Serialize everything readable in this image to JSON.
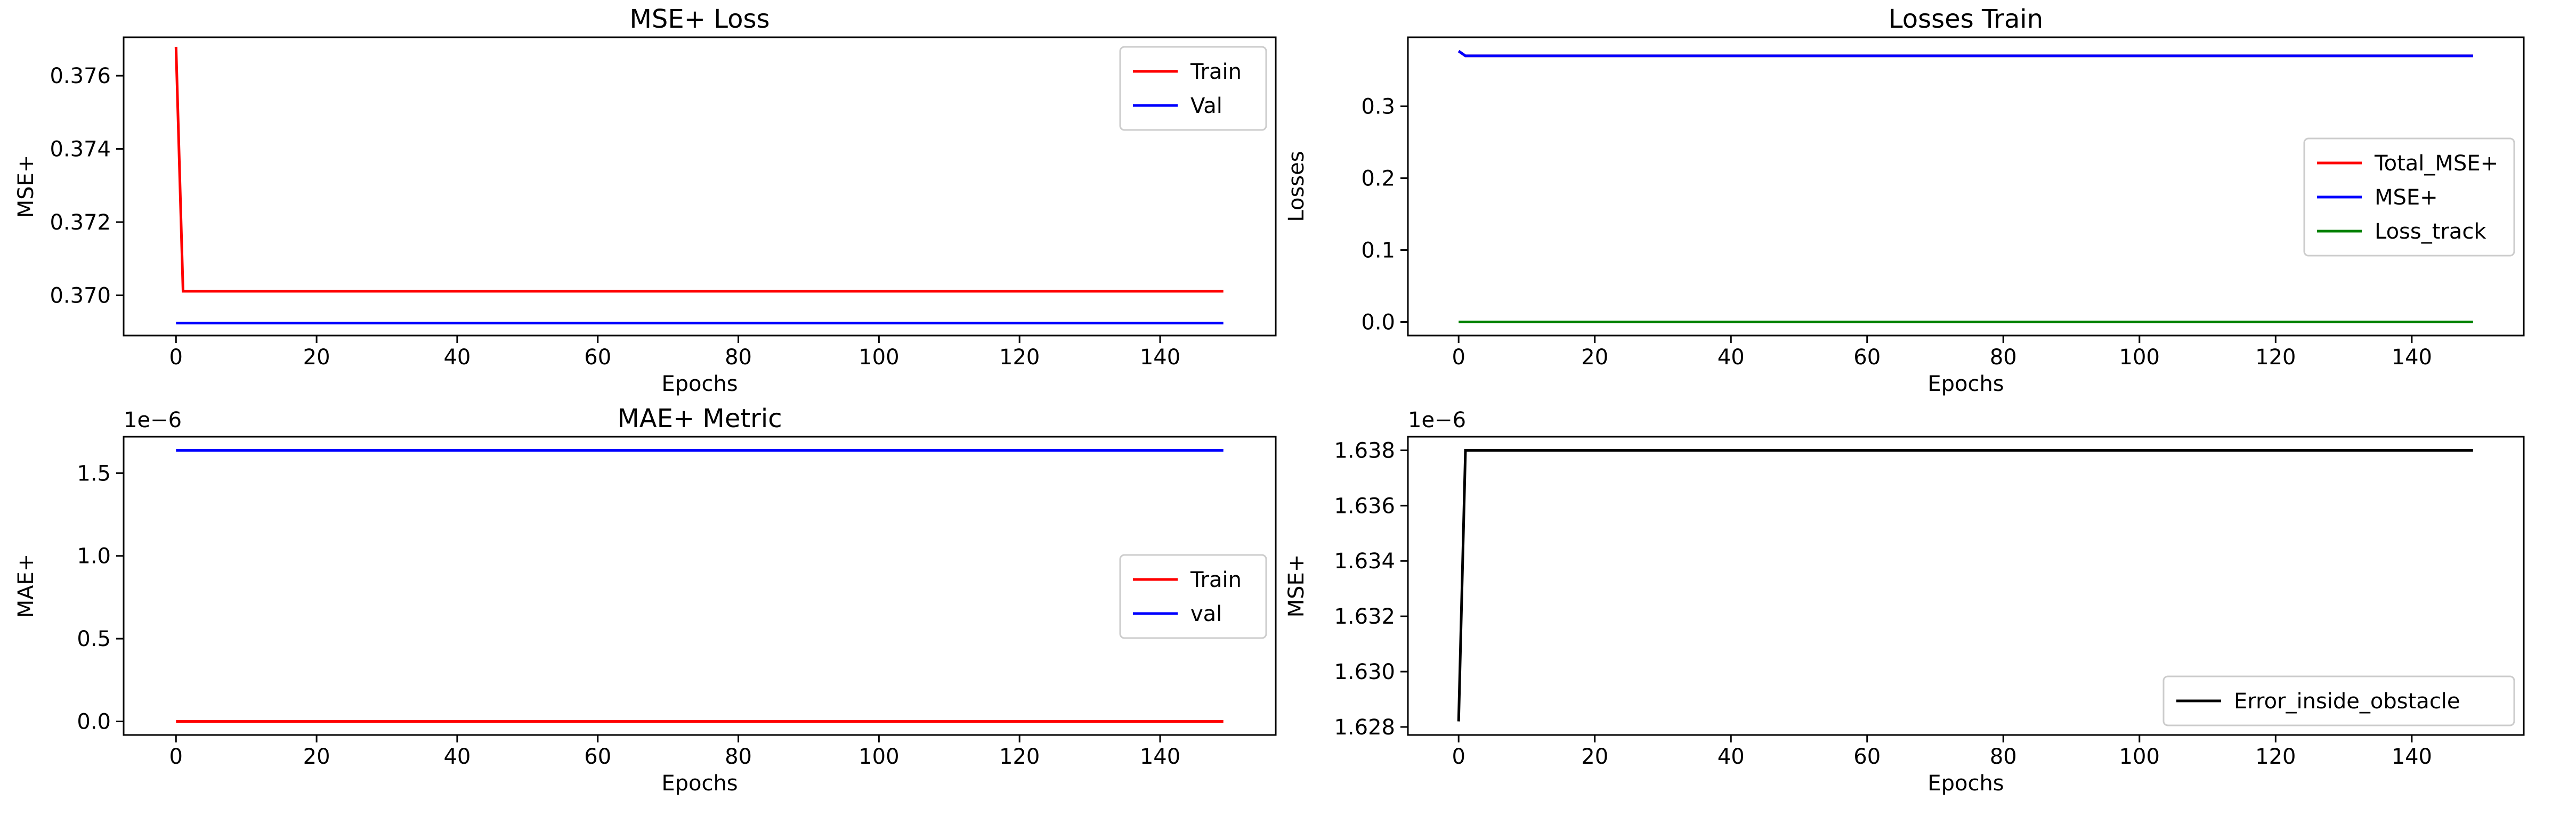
{
  "chart_data": [
    {
      "type": "line",
      "title": "MSE+ Loss",
      "xlabel": "Epochs",
      "ylabel": "MSE+",
      "xlim": [
        -7.45,
        156.45
      ],
      "ylim": [
        0.3689,
        0.37705
      ],
      "xticks": [
        0,
        20,
        40,
        60,
        80,
        100,
        120,
        140
      ],
      "yticks": [
        0.37,
        0.372,
        0.374,
        0.376
      ],
      "ytick_labels": [
        "0.370",
        "0.372",
        "0.374",
        "0.376"
      ],
      "offset_label": "",
      "legend_position": "upper right",
      "series": [
        {
          "name": "Train",
          "color": "#ff0000",
          "points": [
            [
              0,
              0.37679
            ],
            [
              1,
              0.37011
            ],
            [
              149,
              0.37011
            ]
          ]
        },
        {
          "name": "Val",
          "color": "#0000ff",
          "points": [
            [
              0,
              0.36924
            ],
            [
              149,
              0.36924
            ]
          ]
        }
      ]
    },
    {
      "type": "line",
      "title": "Losses Train",
      "xlabel": "Epochs",
      "ylabel": "Losses",
      "xlim": [
        -7.45,
        156.45
      ],
      "ylim": [
        -0.0189,
        0.396
      ],
      "xticks": [
        0,
        20,
        40,
        60,
        80,
        100,
        120,
        140
      ],
      "yticks": [
        0.0,
        0.1,
        0.2,
        0.3
      ],
      "ytick_labels": [
        "0.0",
        "0.1",
        "0.2",
        "0.3"
      ],
      "offset_label": "",
      "legend_position": "center right",
      "series": [
        {
          "name": "Total_MSE+",
          "color": "#ff0000",
          "points": [
            [
              0,
              0.37679
            ],
            [
              1,
              0.37011
            ],
            [
              149,
              0.37011
            ]
          ]
        },
        {
          "name": "MSE+",
          "color": "#0000ff",
          "points": [
            [
              0,
              0.37679
            ],
            [
              1,
              0.37011
            ],
            [
              149,
              0.37011
            ]
          ]
        },
        {
          "name": "Loss_track",
          "color": "#008000",
          "points": [
            [
              0,
              0.0
            ],
            [
              149,
              0.0
            ]
          ]
        }
      ]
    },
    {
      "type": "line",
      "title": "MAE+ Metric",
      "xlabel": "Epochs",
      "ylabel": "MAE+",
      "xlim": [
        -7.45,
        156.45
      ],
      "ylim": [
        -0.0819,
        1.7199
      ],
      "xticks": [
        0,
        20,
        40,
        60,
        80,
        100,
        120,
        140
      ],
      "yticks": [
        0.0,
        0.5,
        1.0,
        1.5
      ],
      "ytick_labels": [
        "0.0",
        "0.5",
        "1.0",
        "1.5"
      ],
      "offset_label": "1e−6",
      "legend_position": "center right",
      "series": [
        {
          "name": "Train",
          "color": "#ff0000",
          "points": [
            [
              0,
              0.0
            ],
            [
              149,
              0.0
            ]
          ]
        },
        {
          "name": "val",
          "color": "#0000ff",
          "points": [
            [
              0,
              1.638
            ],
            [
              149,
              1.638
            ]
          ]
        }
      ]
    },
    {
      "type": "line",
      "title": "",
      "xlabel": "Epochs",
      "ylabel": "MSE+",
      "xlim": [
        -7.45,
        156.45
      ],
      "ylim": [
        1.62771,
        1.63849
      ],
      "xticks": [
        0,
        20,
        40,
        60,
        80,
        100,
        120,
        140
      ],
      "yticks": [
        1.628,
        1.63,
        1.632,
        1.634,
        1.636,
        1.638
      ],
      "ytick_labels": [
        "1.628",
        "1.630",
        "1.632",
        "1.634",
        "1.636",
        "1.638"
      ],
      "offset_label": "1e−6",
      "legend_position": "lower right",
      "series": [
        {
          "name": "Error_inside_obstacle",
          "color": "#000000",
          "points": [
            [
              0,
              1.6282
            ],
            [
              1,
              1.638
            ],
            [
              149,
              1.638
            ]
          ]
        }
      ]
    }
  ]
}
